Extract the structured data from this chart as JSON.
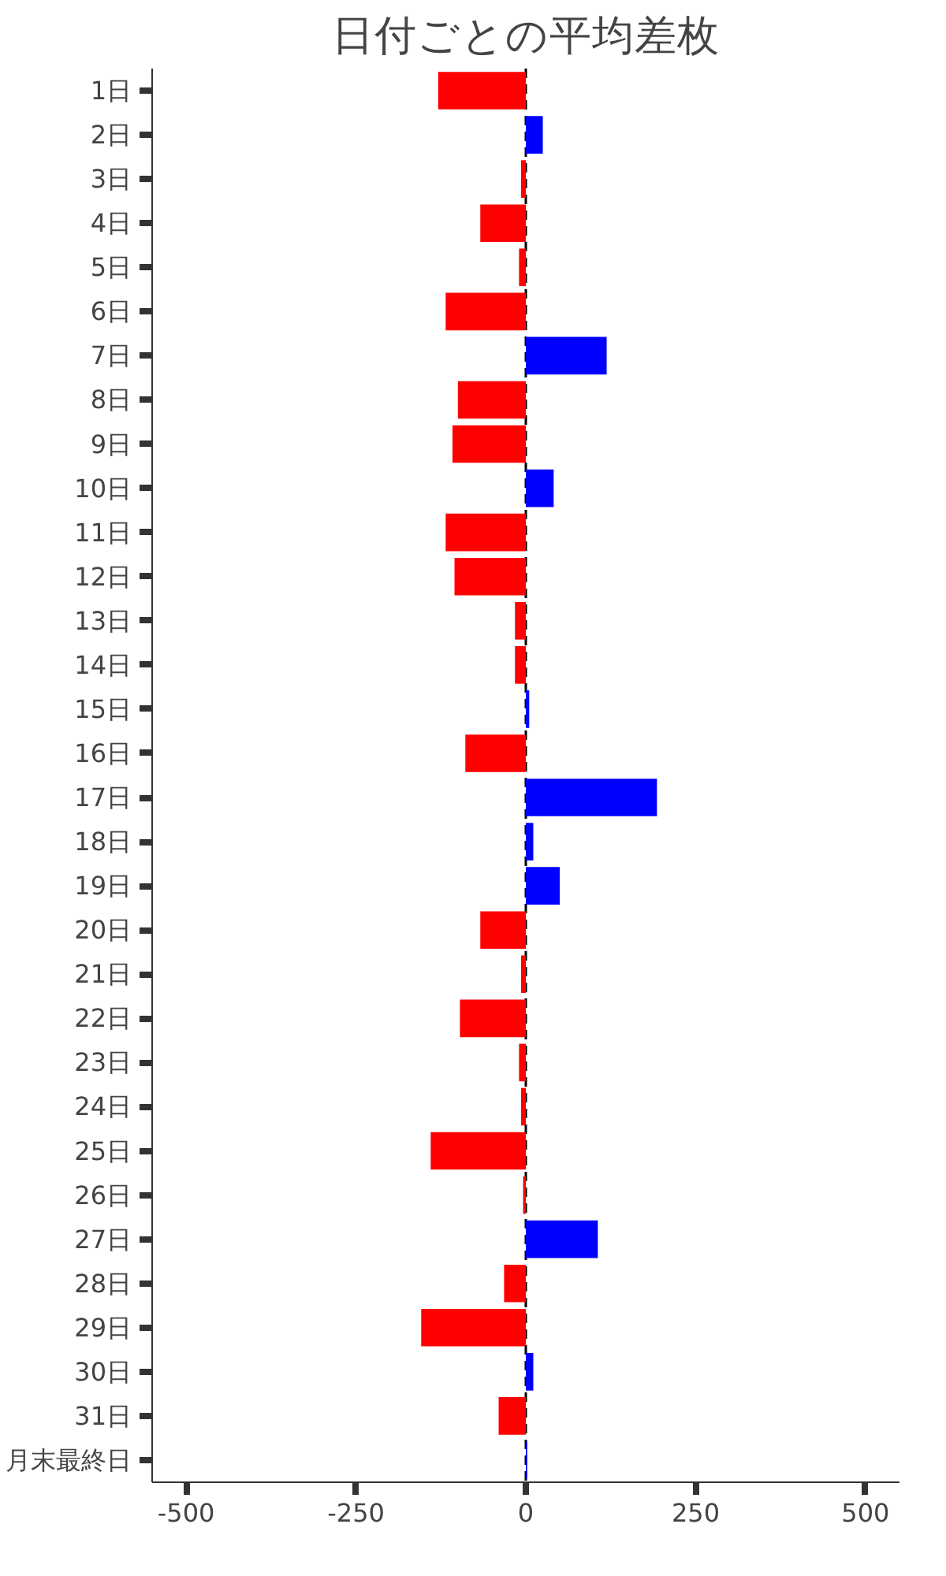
{
  "chart_data": {
    "type": "bar",
    "orientation": "horizontal",
    "title": "日付ごとの平均差枚",
    "categories": [
      "1日",
      "2日",
      "3日",
      "4日",
      "5日",
      "6日",
      "7日",
      "8日",
      "9日",
      "10日",
      "11日",
      "12日",
      "13日",
      "14日",
      "15日",
      "16日",
      "17日",
      "18日",
      "19日",
      "20日",
      "21日",
      "22日",
      "23日",
      "24日",
      "25日",
      "26日",
      "27日",
      "28日",
      "29日",
      "30日",
      "31日",
      "月末最終日"
    ],
    "values": [
      -129,
      25,
      -7,
      -67,
      -10,
      -118,
      119,
      -100,
      -108,
      41,
      -118,
      -105,
      -16,
      -16,
      5,
      -89,
      193,
      11,
      50,
      -67,
      -7,
      -97,
      -10,
      -7,
      -140,
      -4,
      106,
      -32,
      -154,
      11,
      -40,
      2
    ],
    "colors": [
      "#ff0000",
      "#0000ff",
      "#ff0000",
      "#ff0000",
      "#ff0000",
      "#ff0000",
      "#0000ff",
      "#ff0000",
      "#ff0000",
      "#0000ff",
      "#ff0000",
      "#ff0000",
      "#ff0000",
      "#ff0000",
      "#0000ff",
      "#ff0000",
      "#0000ff",
      "#0000ff",
      "#0000ff",
      "#ff0000",
      "#ff0000",
      "#ff0000",
      "#ff0000",
      "#ff0000",
      "#ff0000",
      "#ff0000",
      "#0000ff",
      "#ff0000",
      "#ff0000",
      "#0000ff",
      "#ff0000",
      "#0000ff"
    ],
    "xlim": [
      -550,
      550
    ],
    "xticks": [
      -500,
      -250,
      0,
      250,
      500
    ],
    "ref_lines": [
      {
        "axis": "x",
        "value": 0,
        "color": "#000000",
        "line_style": "dashed"
      }
    ],
    "grid": false
  }
}
